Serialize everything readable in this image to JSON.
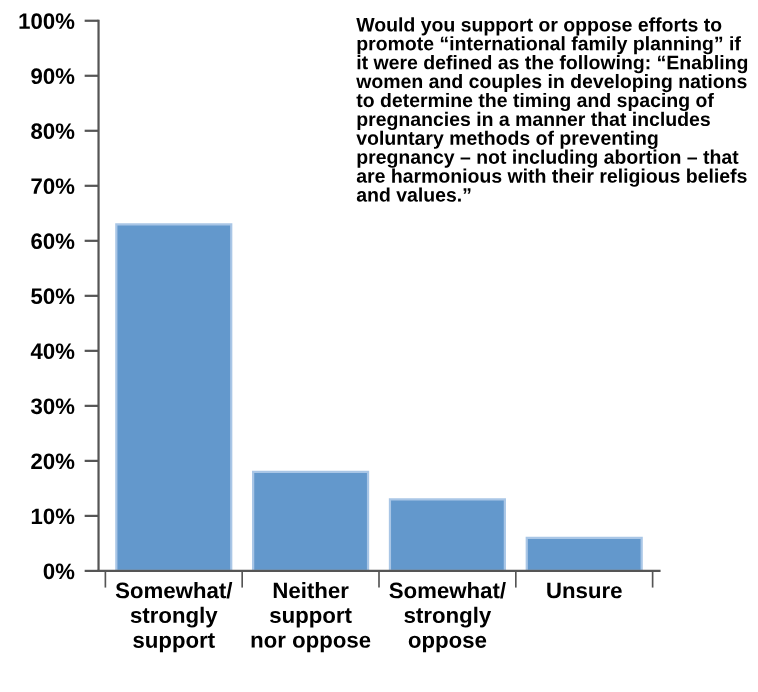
{
  "chart_data": {
    "type": "bar",
    "title": "Would you support or oppose efforts to promote “international family planning” if it were defined as the following: “Enabling women and couples in developing nations to determine the timing and spacing of pregnancies in a manner that includes voluntary methods of preventing pregnancy – not including abortion – that are harmonious with their religious beliefs and values.”",
    "categories": [
      "Somewhat/\nstrongly\nsupport",
      "Neither\nsupport\nnor oppose",
      "Somewhat/\nstrongly\noppose",
      "Unsure"
    ],
    "values": [
      63,
      18,
      13,
      6
    ],
    "color": "#6398cc",
    "ylim": [
      0,
      100
    ],
    "yticks": [
      {
        "value": 0,
        "label": "0%"
      },
      {
        "value": 10,
        "label": "10%"
      },
      {
        "value": 20,
        "label": "20%"
      },
      {
        "value": 30,
        "label": "30%"
      },
      {
        "value": 40,
        "label": "40%"
      },
      {
        "value": 50,
        "label": "50%"
      },
      {
        "value": 60,
        "label": "60%"
      },
      {
        "value": 70,
        "label": "70%"
      },
      {
        "value": 80,
        "label": "80%"
      },
      {
        "value": 90,
        "label": "90%"
      },
      {
        "value": 100,
        "label": "100%"
      }
    ],
    "grid": false
  }
}
